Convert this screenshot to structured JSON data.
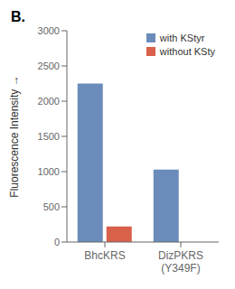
{
  "chart_data": {
    "type": "bar",
    "categories": [
      "BhcKRS",
      "DizPKRS\n(Y349F)"
    ],
    "series": [
      {
        "name": "with KStyr",
        "color": "#6b8cba",
        "values": [
          2250,
          1030
        ]
      },
      {
        "name": "without KSty",
        "color": "#d9604a",
        "values": [
          220,
          0
        ]
      }
    ],
    "ylabel": "Fluorescence Intensity →",
    "ylim": [
      0,
      3000
    ],
    "yticks": [
      0,
      500,
      1000,
      1500,
      2000,
      2500,
      3000
    ],
    "legend": "upper right",
    "grid": false,
    "annotations": [
      "B."
    ]
  }
}
